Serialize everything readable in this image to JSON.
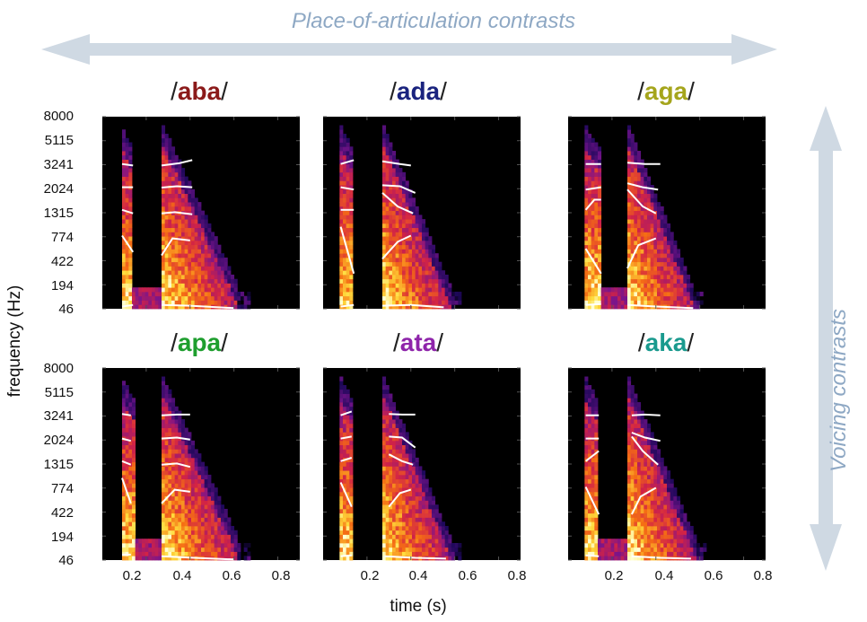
{
  "header": {
    "place_label": "Place-of-articulation contrasts"
  },
  "side": {
    "voicing_label": "Voicing contrasts"
  },
  "chart_data": {
    "type": "heatmap",
    "xlabel": "time (s)",
    "ylabel": "frequency (Hz)",
    "x_ticks": [
      "0.2",
      "0.4",
      "0.6",
      "0.8"
    ],
    "x_tick_values": [
      0.2,
      0.4,
      0.6,
      0.8
    ],
    "xlim": [
      0,
      0.9
    ],
    "y_ticks": [
      "8000",
      "5115",
      "3241",
      "2024",
      "1315",
      "774",
      "422",
      "194",
      "46"
    ],
    "y_tick_values": [
      8000,
      5115,
      3241,
      2024,
      1315,
      774,
      422,
      194,
      46
    ],
    "y_scale": "mel-like (evenly spaced ticks)",
    "colormap": "black-purple-red-yellow-white",
    "grid": false,
    "panels": [
      {
        "title": "aba",
        "color": "#8b1a1a",
        "row": 0,
        "col": 0,
        "burst1": [
          0.09,
          0.14
        ],
        "burst2": [
          0.27,
          0.62
        ],
        "gap": [
          0.14,
          0.27
        ],
        "onset_sharp": false,
        "formants": [
          {
            "name": "F1",
            "seg1": [
              [
                0.09,
                60
              ],
              [
                0.14,
                70
              ]
            ],
            "seg2": [
              [
                0.27,
                70
              ],
              [
                0.4,
                65
              ],
              [
                0.6,
                50
              ]
            ]
          },
          {
            "name": "F2",
            "seg1": [
              [
                0.09,
                800
              ],
              [
                0.14,
                550
              ]
            ],
            "seg2": [
              [
                0.27,
                500
              ],
              [
                0.32,
                750
              ],
              [
                0.4,
                720
              ]
            ]
          },
          {
            "name": "F3",
            "seg1": [
              [
                0.09,
                1400
              ],
              [
                0.14,
                1300
              ]
            ],
            "seg2": [
              [
                0.27,
                1300
              ],
              [
                0.33,
                1330
              ],
              [
                0.41,
                1280
              ]
            ]
          },
          {
            "name": "F4",
            "seg1": [
              [
                0.09,
                2100
              ],
              [
                0.14,
                2100
              ]
            ],
            "seg2": [
              [
                0.27,
                2080
              ],
              [
                0.34,
                2150
              ],
              [
                0.41,
                2100
              ]
            ]
          },
          {
            "name": "F5",
            "seg1": [
              [
                0.09,
                3300
              ],
              [
                0.14,
                3200
              ]
            ],
            "seg2": [
              [
                0.27,
                3200
              ],
              [
                0.35,
                3350
              ],
              [
                0.41,
                3600
              ]
            ]
          }
        ]
      },
      {
        "title": "ada",
        "color": "#1a237e",
        "row": 0,
        "col": 1,
        "burst1": [
          0.08,
          0.14
        ],
        "burst2": [
          0.27,
          0.58
        ],
        "gap": [
          0.14,
          0.27
        ],
        "onset_sharp": true,
        "formants": [
          {
            "name": "F1",
            "seg1": [
              [
                0.08,
                60
              ],
              [
                0.14,
                70
              ]
            ],
            "seg2": [
              [
                0.27,
                65
              ],
              [
                0.4,
                70
              ],
              [
                0.55,
                55
              ]
            ]
          },
          {
            "name": "F2",
            "seg1": [
              [
                0.08,
                1000
              ],
              [
                0.14,
                300
              ]
            ],
            "seg2": [
              [
                0.27,
                450
              ],
              [
                0.34,
                700
              ],
              [
                0.4,
                800
              ]
            ]
          },
          {
            "name": "F3",
            "seg1": [
              [
                0.08,
                1400
              ],
              [
                0.14,
                1400
              ]
            ],
            "seg2": [
              [
                0.27,
                1900
              ],
              [
                0.34,
                1500
              ],
              [
                0.41,
                1300
              ]
            ]
          },
          {
            "name": "F4",
            "seg1": [
              [
                0.08,
                2100
              ],
              [
                0.14,
                2000
              ]
            ],
            "seg2": [
              [
                0.27,
                2200
              ],
              [
                0.35,
                2150
              ],
              [
                0.42,
                1900
              ]
            ]
          },
          {
            "name": "F5",
            "seg1": [
              [
                0.08,
                3300
              ],
              [
                0.14,
                3600
              ]
            ],
            "seg2": [
              [
                0.27,
                3500
              ],
              [
                0.35,
                3300
              ],
              [
                0.4,
                3200
              ]
            ]
          }
        ]
      },
      {
        "title": "aga",
        "color": "#a5a51c",
        "row": 0,
        "col": 2,
        "burst1": [
          0.08,
          0.15
        ],
        "burst2": [
          0.27,
          0.57
        ],
        "gap": [
          0.15,
          0.27
        ],
        "onset_sharp": false,
        "formants": [
          {
            "name": "F1",
            "seg1": [
              [
                0.08,
                70
              ],
              [
                0.15,
                75
              ]
            ],
            "seg2": [
              [
                0.27,
                70
              ],
              [
                0.4,
                60
              ],
              [
                0.57,
                50
              ]
            ]
          },
          {
            "name": "F2",
            "seg1": [
              [
                0.08,
                600
              ],
              [
                0.15,
                300
              ]
            ],
            "seg2": [
              [
                0.27,
                350
              ],
              [
                0.32,
                650
              ],
              [
                0.4,
                750
              ]
            ]
          },
          {
            "name": "F3",
            "seg1": [
              [
                0.08,
                1400
              ],
              [
                0.12,
                1700
              ],
              [
                0.15,
                1700
              ]
            ],
            "seg2": [
              [
                0.27,
                2000
              ],
              [
                0.34,
                1500
              ],
              [
                0.4,
                1300
              ]
            ]
          },
          {
            "name": "F4",
            "seg1": [
              [
                0.08,
                2000
              ],
              [
                0.15,
                2100
              ]
            ],
            "seg2": [
              [
                0.27,
                2300
              ],
              [
                0.34,
                2100
              ],
              [
                0.41,
                2000
              ]
            ]
          },
          {
            "name": "F5",
            "seg1": [
              [
                0.08,
                3300
              ],
              [
                0.15,
                3300
              ]
            ],
            "seg2": [
              [
                0.27,
                3400
              ],
              [
                0.35,
                3300
              ],
              [
                0.42,
                3300
              ]
            ]
          }
        ]
      },
      {
        "title": "apa",
        "color": "#1e9e2e",
        "row": 1,
        "col": 0,
        "burst1": [
          0.09,
          0.15
        ],
        "burst2": [
          0.27,
          0.62
        ],
        "gap": [
          0.15,
          0.27
        ],
        "onset_sharp": false,
        "formants": [
          {
            "name": "F1",
            "seg1": [
              [
                0.09,
                80
              ],
              [
                0.13,
                80
              ]
            ],
            "seg2": [
              [
                0.27,
                70
              ],
              [
                0.42,
                60
              ],
              [
                0.6,
                50
              ]
            ]
          },
          {
            "name": "F2",
            "seg1": [
              [
                0.09,
                1000
              ],
              [
                0.13,
                550
              ]
            ],
            "seg2": [
              [
                0.27,
                550
              ],
              [
                0.33,
                750
              ],
              [
                0.4,
                720
              ]
            ]
          },
          {
            "name": "F3",
            "seg1": [
              [
                0.09,
                1400
              ],
              [
                0.13,
                1300
              ]
            ],
            "seg2": [
              [
                0.27,
                1300
              ],
              [
                0.34,
                1330
              ],
              [
                0.4,
                1250
              ]
            ]
          },
          {
            "name": "F4",
            "seg1": [
              [
                0.09,
                2100
              ],
              [
                0.13,
                2000
              ]
            ],
            "seg2": [
              [
                0.27,
                2100
              ],
              [
                0.34,
                2150
              ],
              [
                0.4,
                2050
              ]
            ]
          },
          {
            "name": "F5",
            "seg1": [
              [
                0.09,
                3400
              ],
              [
                0.13,
                3300
              ]
            ],
            "seg2": [
              [
                0.27,
                3300
              ],
              [
                0.34,
                3350
              ],
              [
                0.4,
                3350
              ]
            ]
          }
        ]
      },
      {
        "title": "ata",
        "color": "#8e24aa",
        "row": 1,
        "col": 1,
        "burst1": [
          0.08,
          0.14
        ],
        "burst2": [
          0.27,
          0.58
        ],
        "gap": [
          0.14,
          0.27
        ],
        "onset_sharp": true,
        "formants": [
          {
            "name": "F1",
            "seg1": [
              [
                0.08,
                70
              ],
              [
                0.13,
                75
              ]
            ],
            "seg2": [
              [
                0.28,
                70
              ],
              [
                0.42,
                60
              ],
              [
                0.56,
                55
              ]
            ]
          },
          {
            "name": "F2",
            "seg1": [
              [
                0.08,
                900
              ],
              [
                0.13,
                500
              ]
            ],
            "seg2": [
              [
                0.3,
                500
              ],
              [
                0.35,
                700
              ],
              [
                0.4,
                750
              ]
            ]
          },
          {
            "name": "F3",
            "seg1": [
              [
                0.08,
                1400
              ],
              [
                0.13,
                1500
              ]
            ],
            "seg2": [
              [
                0.3,
                1600
              ],
              [
                0.36,
                1400
              ],
              [
                0.41,
                1300
              ]
            ]
          },
          {
            "name": "F4",
            "seg1": [
              [
                0.08,
                2100
              ],
              [
                0.13,
                2200
              ]
            ],
            "seg2": [
              [
                0.3,
                2200
              ],
              [
                0.36,
                2150
              ],
              [
                0.42,
                1800
              ]
            ]
          },
          {
            "name": "F5",
            "seg1": [
              [
                0.08,
                3300
              ],
              [
                0.13,
                3600
              ]
            ],
            "seg2": [
              [
                0.3,
                3400
              ],
              [
                0.36,
                3350
              ],
              [
                0.42,
                3350
              ]
            ]
          }
        ]
      },
      {
        "title": "aka",
        "color": "#1a9a8e",
        "row": 1,
        "col": 2,
        "burst1": [
          0.08,
          0.14
        ],
        "burst2": [
          0.27,
          0.58
        ],
        "gap": [
          0.14,
          0.27
        ],
        "onset_sharp": false,
        "formants": [
          {
            "name": "F1",
            "seg1": [
              [
                0.08,
                75
              ],
              [
                0.14,
                70
              ]
            ],
            "seg2": [
              [
                0.29,
                70
              ],
              [
                0.42,
                60
              ],
              [
                0.56,
                55
              ]
            ]
          },
          {
            "name": "F2",
            "seg1": [
              [
                0.08,
                800
              ],
              [
                0.14,
                400
              ]
            ],
            "seg2": [
              [
                0.29,
                400
              ],
              [
                0.33,
                650
              ],
              [
                0.4,
                780
              ]
            ]
          },
          {
            "name": "F3",
            "seg1": [
              [
                0.08,
                1400
              ],
              [
                0.14,
                1700
              ]
            ],
            "seg2": [
              [
                0.29,
                2200
              ],
              [
                0.34,
                1700
              ],
              [
                0.41,
                1300
              ]
            ]
          },
          {
            "name": "F4",
            "seg1": [
              [
                0.08,
                2100
              ],
              [
                0.14,
                2100
              ]
            ],
            "seg2": [
              [
                0.29,
                2400
              ],
              [
                0.35,
                2150
              ],
              [
                0.42,
                2000
              ]
            ]
          },
          {
            "name": "F5",
            "seg1": [
              [
                0.08,
                3300
              ],
              [
                0.14,
                3300
              ]
            ],
            "seg2": [
              [
                0.29,
                3300
              ],
              [
                0.35,
                3350
              ],
              [
                0.42,
                3300
              ]
            ]
          }
        ]
      }
    ]
  }
}
